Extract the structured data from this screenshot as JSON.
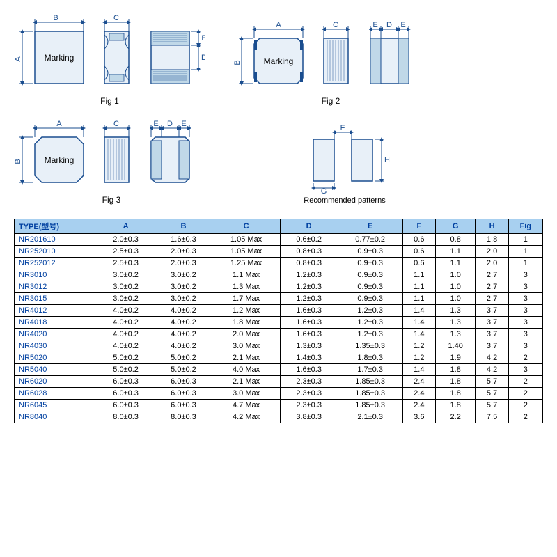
{
  "diagrams": {
    "fig1_label": "Fig 1",
    "fig2_label": "Fig 2",
    "fig3_label": "Fig 3",
    "rec_label": "Recommended patterns",
    "marking_text": "Marking",
    "dims": {
      "A": "A",
      "B": "B",
      "C": "C",
      "D": "D",
      "E": "E",
      "F": "F",
      "G": "G",
      "H": "H"
    },
    "colors": {
      "line": "#1a4d8f",
      "fill": "#e8f0f8",
      "header_bg": "#a8d0f0",
      "header_fg": "#0040a0"
    }
  },
  "table": {
    "columns": [
      "TYPE(型号)",
      "A",
      "B",
      "C",
      "D",
      "E",
      "F",
      "G",
      "H",
      "Fig"
    ],
    "rows": [
      [
        "NR201610",
        "2.0±0.3",
        "1.6±0.3",
        "1.05 Max",
        "0.6±0.2",
        "0.77±0.2",
        "0.6",
        "0.8",
        "1.8",
        "1"
      ],
      [
        "NR252010",
        "2.5±0.3",
        "2.0±0.3",
        "1.05 Max",
        "0.8±0.3",
        "0.9±0.3",
        "0.6",
        "1.1",
        "2.0",
        "1"
      ],
      [
        "NR252012",
        "2.5±0.3",
        "2.0±0.3",
        "1.25 Max",
        "0.8±0.3",
        "0.9±0.3",
        "0.6",
        "1.1",
        "2.0",
        "1"
      ],
      [
        "NR3010",
        "3.0±0.2",
        "3.0±0.2",
        "1.1 Max",
        "1.2±0.3",
        "0.9±0.3",
        "1.1",
        "1.0",
        "2.7",
        "3"
      ],
      [
        "NR3012",
        "3.0±0.2",
        "3.0±0.2",
        "1.3 Max",
        "1.2±0.3",
        "0.9±0.3",
        "1.1",
        "1.0",
        "2.7",
        "3"
      ],
      [
        "NR3015",
        "3.0±0.2",
        "3.0±0.2",
        "1.7 Max",
        "1.2±0.3",
        "0.9±0.3",
        "1.1",
        "1.0",
        "2.7",
        "3"
      ],
      [
        "NR4012",
        "4.0±0.2",
        "4.0±0.2",
        "1.2 Max",
        "1.6±0.3",
        "1.2±0.3",
        "1.4",
        "1.3",
        "3.7",
        "3"
      ],
      [
        "NR4018",
        "4.0±0.2",
        "4.0±0.2",
        "1.8 Max",
        "1.6±0.3",
        "1.2±0.3",
        "1.4",
        "1.3",
        "3.7",
        "3"
      ],
      [
        "NR4020",
        "4.0±0.2",
        "4.0±0.2",
        "2.0 Max",
        "1.6±0.3",
        "1.2±0.3",
        "1.4",
        "1.3",
        "3.7",
        "3"
      ],
      [
        "NR4030",
        "4.0±0.2",
        "4.0±0.2",
        "3.0 Max",
        "1.3±0.3",
        "1.35±0.3",
        "1.2",
        "1.40",
        "3.7",
        "3"
      ],
      [
        "NR5020",
        "5.0±0.2",
        "5.0±0.2",
        "2.1 Max",
        "1.4±0.3",
        "1.8±0.3",
        "1.2",
        "1.9",
        "4.2",
        "2"
      ],
      [
        "NR5040",
        "5.0±0.2",
        "5.0±0.2",
        "4.0 Max",
        "1.6±0.3",
        "1.7±0.3",
        "1.4",
        "1.8",
        "4.2",
        "3"
      ],
      [
        "NR6020",
        "6.0±0.3",
        "6.0±0.3",
        "2.1 Max",
        "2.3±0.3",
        "1.85±0.3",
        "2.4",
        "1.8",
        "5.7",
        "2"
      ],
      [
        "NR6028",
        "6.0±0.3",
        "6.0±0.3",
        "3.0 Max",
        "2.3±0.3",
        "1.85±0.3",
        "2.4",
        "1.8",
        "5.7",
        "2"
      ],
      [
        "NR6045",
        "6.0±0.3",
        "6.0±0.3",
        "4.7 Max",
        "2.3±0.3",
        "1.85±0.3",
        "2.4",
        "1.8",
        "5.7",
        "2"
      ],
      [
        "NR8040",
        "8.0±0.3",
        "8.0±0.3",
        "4.2 Max",
        "3.8±0.3",
        "2.1±0.3",
        "3.6",
        "2.2",
        "7.5",
        "2"
      ]
    ]
  }
}
